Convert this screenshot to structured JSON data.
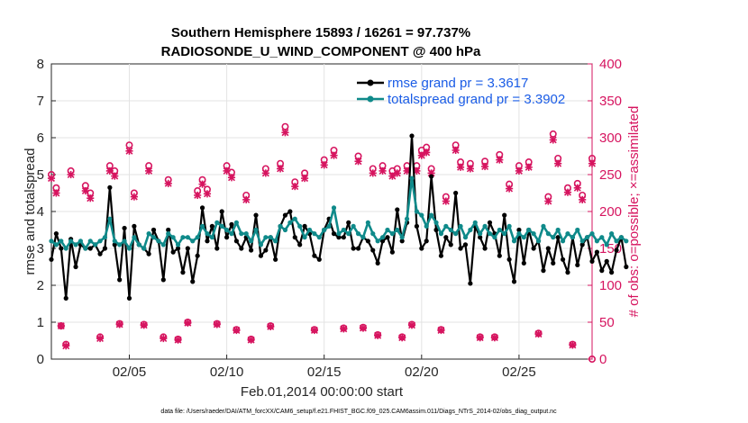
{
  "chart_data": {
    "type": "line",
    "title": "Southern Hemisphere 15893 / 16261 = 97.737%",
    "subtitle": "RADIOSONDE_U_WIND_COMPONENT @ 400 hPa",
    "xlabel": "Feb.01,2014 00:00:00 start",
    "ylabel": "rmse and totalspread",
    "ylabel_right": "# of obs: o=possible; ×=assimilated",
    "x_tick_labels": [
      "02/05",
      "02/10",
      "02/15",
      "02/20",
      "02/25"
    ],
    "x_tick_values": [
      5,
      10,
      15,
      20,
      25
    ],
    "xlim": [
      1,
      28.75
    ],
    "ylim": [
      0,
      8
    ],
    "y_ticks": [
      "0",
      "1",
      "2",
      "3",
      "4",
      "5",
      "6",
      "7",
      "8"
    ],
    "ylim_right": [
      0,
      400
    ],
    "y_ticks_right": [
      "0",
      "50",
      "100",
      "150",
      "200",
      "250",
      "300",
      "350",
      "400"
    ],
    "legend_position": "top-right",
    "series": [
      {
        "name": "rmse grand pr = 3.3617",
        "color": "#000000",
        "marker": "dot",
        "x_start": 1,
        "x_step": 0.25,
        "values": [
          2.7,
          3.4,
          3.0,
          1.65,
          3.25,
          2.5,
          3.1,
          3.0,
          3.0,
          3.1,
          2.85,
          3.0,
          4.65,
          3.1,
          2.15,
          3.55,
          1.65,
          3.6,
          3.1,
          3.0,
          2.85,
          3.5,
          3.2,
          2.15,
          3.5,
          2.9,
          3.0,
          2.35,
          3.0,
          2.1,
          2.8,
          4.1,
          3.2,
          3.6,
          3.0,
          4.0,
          3.3,
          3.65,
          3.2,
          3.0,
          3.3,
          2.95,
          3.9,
          2.8,
          2.95,
          3.3,
          2.7,
          3.6,
          3.9,
          4.0,
          3.3,
          3.1,
          3.6,
          3.4,
          2.8,
          2.7,
          3.5,
          3.8,
          3.4,
          3.3,
          3.3,
          3.7,
          3.0,
          3.0,
          3.3,
          3.2,
          2.95,
          2.6,
          3.2,
          3.3,
          2.9,
          4.05,
          3.2,
          3.7,
          6.05,
          3.6,
          3.0,
          3.2,
          4.95,
          3.5,
          2.8,
          3.3,
          3.1,
          4.5,
          3.0,
          3.1,
          2.05,
          3.6,
          3.3,
          3.0,
          3.7,
          3.4,
          2.8,
          3.9,
          2.7,
          2.1,
          3.5,
          2.6,
          3.5,
          3.0,
          3.2,
          2.4,
          3.0,
          2.6,
          3.3,
          2.7,
          2.35,
          3.3,
          2.55,
          3.1,
          3.3,
          2.65,
          2.9,
          2.4,
          2.65,
          2.35,
          2.95,
          3.3,
          2.5
        ]
      },
      {
        "name": "totalspread grand pr = 3.3902",
        "color": "#0f8a8a",
        "marker": "dot",
        "x_start": 1,
        "x_step": 0.25,
        "values": [
          3.2,
          3.1,
          3.2,
          3.0,
          3.2,
          3.1,
          3.2,
          3.0,
          3.2,
          3.1,
          3.2,
          3.3,
          3.8,
          3.2,
          3.1,
          3.2,
          3.0,
          3.3,
          3.1,
          3.0,
          3.4,
          3.3,
          3.2,
          3.1,
          3.4,
          3.3,
          3.1,
          3.3,
          3.3,
          3.2,
          3.3,
          3.6,
          3.4,
          3.3,
          3.7,
          3.6,
          3.5,
          3.4,
          3.7,
          3.4,
          3.4,
          3.2,
          3.5,
          3.1,
          3.3,
          3.3,
          3.2,
          3.6,
          3.5,
          3.7,
          3.8,
          3.6,
          3.3,
          3.5,
          3.4,
          3.3,
          3.5,
          3.6,
          4.1,
          3.4,
          3.5,
          3.4,
          3.6,
          3.4,
          3.3,
          3.7,
          3.4,
          3.2,
          3.3,
          3.5,
          3.4,
          3.5,
          3.3,
          3.8,
          4.9,
          4.0,
          3.9,
          3.6,
          3.9,
          3.7,
          3.4,
          3.6,
          3.5,
          3.4,
          3.6,
          3.3,
          3.5,
          3.7,
          3.4,
          3.6,
          3.4,
          3.3,
          3.5,
          3.4,
          3.6,
          3.2,
          3.4,
          3.3,
          3.5,
          3.4,
          3.2,
          3.6,
          3.4,
          3.3,
          3.5,
          3.2,
          3.4,
          3.3,
          3.5,
          3.2,
          3.3,
          3.4,
          3.2,
          3.3,
          3.1,
          3.4,
          3.2,
          3.3,
          3.2
        ]
      },
      {
        "name": "# obs possible",
        "axis": "right",
        "color": "#d6145f",
        "marker": "circle",
        "x": [
          1.0,
          1.25,
          1.5,
          1.75,
          2.0,
          2.75,
          3.0,
          3.5,
          4.0,
          4.25,
          4.5,
          5.0,
          5.25,
          5.75,
          6.0,
          6.75,
          7.0,
          7.5,
          8.0,
          8.5,
          8.75,
          9.0,
          9.5,
          10.0,
          10.25,
          10.5,
          11.0,
          11.25,
          12.0,
          12.25,
          12.75,
          13.0,
          13.5,
          14.0,
          14.5,
          15.0,
          15.5,
          16.0,
          16.75,
          17.0,
          17.5,
          17.75,
          18.0,
          18.5,
          18.75,
          19.0,
          19.25,
          19.5,
          19.75,
          20.0,
          20.25,
          20.5,
          21.0,
          21.25,
          21.75,
          22.0,
          22.5,
          23.0,
          23.25,
          23.75,
          24.0,
          24.5,
          25.0,
          25.5,
          26.0,
          26.5,
          26.75,
          27.0,
          27.5,
          27.75,
          28.0,
          28.25,
          28.75
        ],
        "values": [
          250,
          232,
          45,
          20,
          255,
          235,
          225,
          30,
          262,
          255,
          48,
          290,
          225,
          47,
          262,
          30,
          243,
          27,
          50,
          228,
          243,
          230,
          48,
          262,
          253,
          40,
          222,
          27,
          258,
          45,
          265,
          315,
          240,
          252,
          40,
          270,
          283,
          42,
          275,
          43,
          258,
          33,
          262,
          255,
          258,
          30,
          262,
          47,
          262,
          283,
          287,
          258,
          40,
          220,
          290,
          267,
          265,
          30,
          268,
          30,
          277,
          237,
          262,
          267,
          35,
          220,
          305,
          272,
          232,
          20,
          238,
          222,
          272
        ]
      },
      {
        "name": "# obs assimilated",
        "axis": "right",
        "color": "#d6145f",
        "marker": "x",
        "x": [
          1.0,
          1.25,
          1.5,
          1.75,
          2.0,
          2.75,
          3.0,
          3.5,
          4.0,
          4.25,
          4.5,
          5.0,
          5.25,
          5.75,
          6.0,
          6.75,
          7.0,
          7.5,
          8.0,
          8.5,
          8.75,
          9.0,
          9.5,
          10.0,
          10.25,
          10.5,
          11.0,
          11.25,
          12.0,
          12.25,
          12.75,
          13.0,
          13.5,
          14.0,
          14.5,
          15.0,
          15.5,
          16.0,
          16.75,
          17.0,
          17.5,
          17.75,
          18.0,
          18.5,
          18.75,
          19.0,
          19.25,
          19.5,
          19.75,
          20.0,
          20.25,
          20.5,
          21.0,
          21.25,
          21.75,
          22.0,
          22.5,
          23.0,
          23.25,
          23.75,
          24.0,
          24.5,
          25.0,
          25.5,
          26.0,
          26.5,
          26.75,
          27.0,
          27.5,
          27.75,
          28.0,
          28.25,
          28.75
        ],
        "values": [
          245,
          225,
          45,
          18,
          250,
          228,
          218,
          28,
          255,
          248,
          47,
          282,
          220,
          46,
          255,
          28,
          238,
          26,
          49,
          222,
          237,
          224,
          47,
          255,
          246,
          39,
          216,
          26,
          252,
          44,
          258,
          307,
          234,
          245,
          39,
          263,
          276,
          41,
          268,
          42,
          252,
          32,
          255,
          248,
          252,
          29,
          255,
          46,
          255,
          276,
          280,
          252,
          39,
          214,
          283,
          260,
          258,
          29,
          261,
          29,
          270,
          231,
          255,
          260,
          34,
          214,
          297,
          265,
          226,
          19,
          232,
          216,
          265
        ]
      }
    ],
    "legend": [
      "rmse grand pr = 3.3617",
      "totalspread grand pr = 3.3902"
    ]
  },
  "footer": {
    "data_file": "data file: /Users/raeder/DAI/ATM_forcXX/CAM6_setup/f.e21.FHIST_BGC.f09_025.CAM6assim.011/Diags_NTrS_2014-02/obs_diag_output.nc"
  },
  "colors": {
    "rmse": "#000000",
    "spread": "#0f8a8a",
    "obs": "#d6145f",
    "legend_text": "#1a5ce6"
  }
}
